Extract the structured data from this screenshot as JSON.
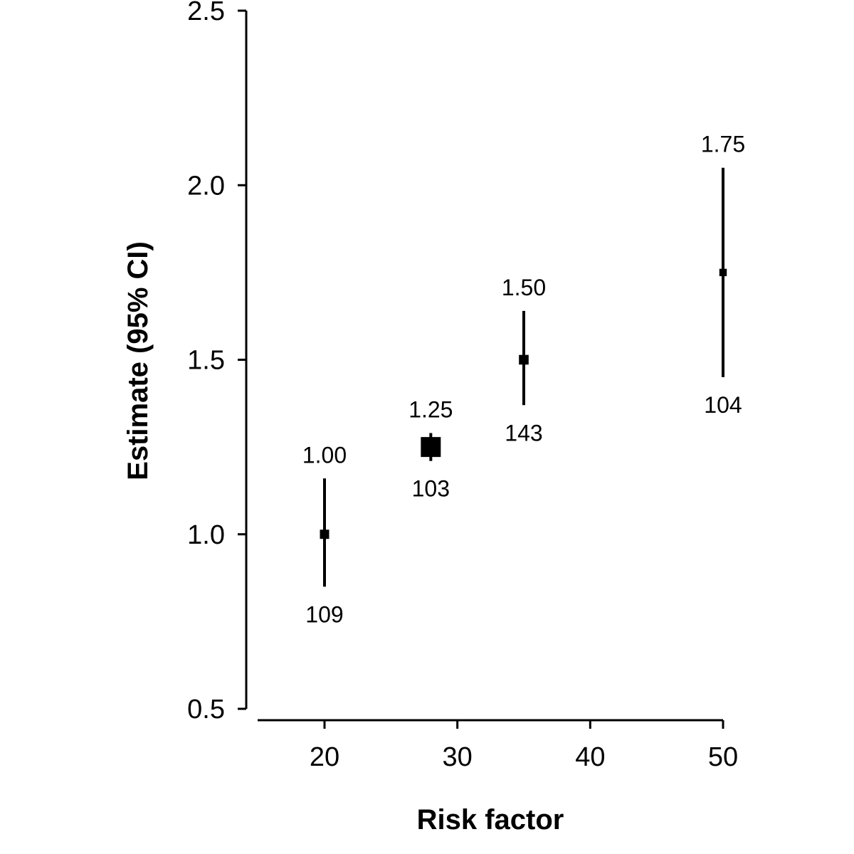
{
  "chart_data": {
    "type": "scatter",
    "title": "",
    "xlabel": "Risk factor",
    "ylabel": "Estimate (95% CI)",
    "xlim": [
      15,
      50
    ],
    "ylim": [
      0.5,
      2.5
    ],
    "x_ticks": [
      20,
      30,
      40,
      50
    ],
    "y_ticks": [
      0.5,
      1.0,
      1.5,
      2.0,
      2.5
    ],
    "x_tick_labels": [
      "20",
      "30",
      "40",
      "50"
    ],
    "y_tick_labels": [
      "0.5",
      "1.0",
      "1.5",
      "2.0",
      "2.5"
    ],
    "grid": false,
    "legend": "none",
    "points": [
      {
        "x": 20,
        "estimate": 1.0,
        "ci_low": 0.85,
        "ci_high": 1.16,
        "weight": 0.1,
        "label_top": "1.00",
        "label_bottom": "109"
      },
      {
        "x": 28,
        "estimate": 1.25,
        "ci_low": 1.21,
        "ci_high": 1.29,
        "weight": 1.0,
        "label_top": "1.25",
        "label_bottom": "103"
      },
      {
        "x": 35,
        "estimate": 1.5,
        "ci_low": 1.37,
        "ci_high": 1.64,
        "weight": 0.12,
        "label_top": "1.50",
        "label_bottom": "143"
      },
      {
        "x": 50,
        "estimate": 1.75,
        "ci_low": 1.45,
        "ci_high": 2.05,
        "weight": 0.04,
        "label_top": "1.75",
        "label_bottom": "104"
      }
    ],
    "colors": {
      "ink": "#000000",
      "background": "#ffffff"
    }
  }
}
